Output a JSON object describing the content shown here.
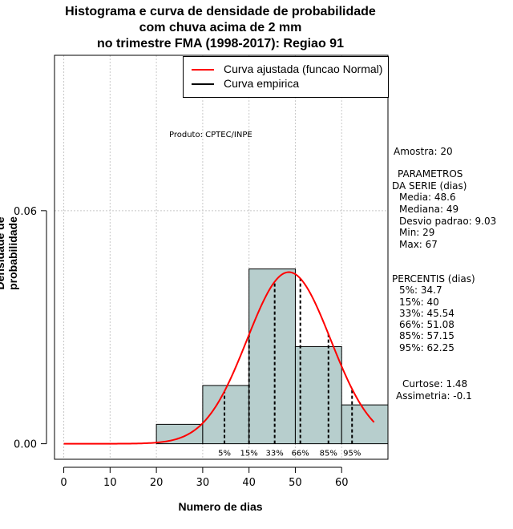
{
  "title": {
    "line1": "Histograma e curva de densidade de probabilidade",
    "line2": "com chuva acima de 2 mm",
    "line3": "no trimestre FMA (1998-2017): Regiao 91"
  },
  "produto": "Produto: CPTEC/INPE",
  "legend": {
    "normal": "Curva ajustada (funcao Normal)",
    "empirica": "Curva empirica",
    "normal_color": "#ff0000",
    "empirica_color": "#000000"
  },
  "stats": {
    "amostra": "Amostra: 20",
    "parametros_title1": "PARAMETROS",
    "parametros_title2": "DA SERIE (dias)",
    "media": "Media: 48.6",
    "mediana": "Mediana: 49",
    "desvio": "Desvio padrao: 9.03",
    "min": "Min: 29",
    "max": "Max: 67",
    "percentis_title": "PERCENTIS (dias)",
    "p5": "5%: 34.7",
    "p15": "15%: 40",
    "p33": "33%: 45.54",
    "p66": "66%: 51.08",
    "p85": "85%: 57.15",
    "p95": "95%: 62.25",
    "curtose": "Curtose: 1.48",
    "assimetria": "Assimetria: -0.1"
  },
  "chart_data": {
    "type": "bar",
    "title": "Histograma e curva de densidade de probabilidade com chuva acima de 2 mm no trimestre FMA (1998-2017): Regiao 91",
    "xlabel": "Numero de dias",
    "ylabel": "Densidade de probabilidade",
    "xlim": [
      -2,
      70
    ],
    "ylim": [
      -0.004,
      0.1
    ],
    "xticks": [
      0,
      10,
      20,
      30,
      40,
      50,
      60
    ],
    "yticks": [
      0.0,
      0.06
    ],
    "ytick_labels": [
      "0.00",
      "0.06"
    ],
    "grid_x": [
      0,
      10,
      20,
      30,
      40,
      50,
      60
    ],
    "grid_y": [
      0.06,
      0.1
    ],
    "bins": [
      {
        "from": 20,
        "to": 30,
        "density": 0.005
      },
      {
        "from": 30,
        "to": 40,
        "density": 0.015
      },
      {
        "from": 40,
        "to": 50,
        "density": 0.045
      },
      {
        "from": 50,
        "to": 60,
        "density": 0.025
      },
      {
        "from": 60,
        "to": 70,
        "density": 0.01
      }
    ],
    "normal_fit": {
      "mean": 48.6,
      "sd": 9.03,
      "x_from": 0,
      "x_to": 67
    },
    "percentiles": [
      {
        "label": "5%",
        "value": 34.7
      },
      {
        "label": "15%",
        "value": 40
      },
      {
        "label": "33%",
        "value": 45.54
      },
      {
        "label": "66%",
        "value": 51.08
      },
      {
        "label": "85%",
        "value": 57.15
      },
      {
        "label": "95%",
        "value": 62.25
      }
    ],
    "bar_color": "#b7cecd",
    "curve_color": "#ff0000"
  }
}
